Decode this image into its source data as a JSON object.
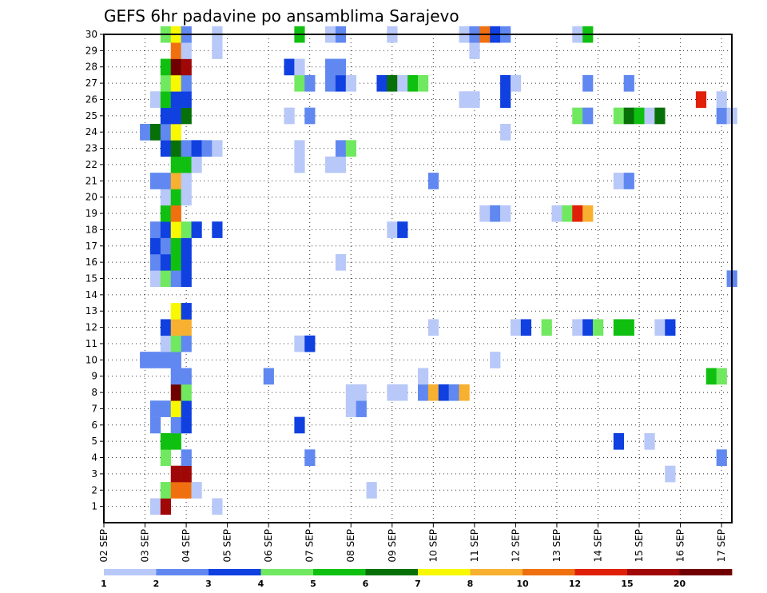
{
  "chart_data": {
    "type": "heatmap",
    "title": "GEFS 6hr padavine po ansamblima Sarajevo",
    "x_ticks": [
      "02 SEP",
      "03 SEP",
      "04 SEP",
      "05 SEP",
      "06 SEP",
      "07 SEP",
      "08 SEP",
      "09 SEP",
      "10 SEP",
      "11 SEP",
      "12 SEP",
      "13 SEP",
      "14 SEP",
      "15 SEP",
      "16 SEP",
      "17 SEP"
    ],
    "x_start": "02 SEP 00Z",
    "x_step_hours": 6,
    "x_range": [
      0,
      61
    ],
    "y_range": [
      0,
      30
    ],
    "y_ticks": [
      1,
      2,
      3,
      4,
      5,
      6,
      7,
      8,
      9,
      10,
      11,
      12,
      13,
      14,
      15,
      16,
      17,
      18,
      19,
      20,
      21,
      22,
      23,
      24,
      25,
      26,
      27,
      28,
      29,
      30
    ],
    "grid": true,
    "legend": {
      "placement": "bottom",
      "levels": [
        1,
        2,
        3,
        4,
        5,
        6,
        7,
        8,
        10,
        12,
        15,
        20
      ],
      "colors": [
        "#b8c8f8",
        "#6088f0",
        "#1040e0",
        "#70e860",
        "#10c010",
        "#087008",
        "#f8f800",
        "#f8b030",
        "#f07010",
        "#e02008",
        "#a00808",
        "#700000"
      ]
    },
    "cells": [
      [
        1,
        5,
        1
      ],
      [
        1,
        6,
        11
      ],
      [
        1,
        11,
        1
      ],
      [
        2,
        6,
        4
      ],
      [
        2,
        7,
        9
      ],
      [
        2,
        8,
        9
      ],
      [
        2,
        9,
        1
      ],
      [
        2,
        26,
        1
      ],
      [
        3,
        7,
        11
      ],
      [
        3,
        8,
        11
      ],
      [
        3,
        55,
        1
      ],
      [
        4,
        6,
        4
      ],
      [
        4,
        8,
        2
      ],
      [
        4,
        20,
        2
      ],
      [
        4,
        60,
        2
      ],
      [
        5,
        6,
        5
      ],
      [
        5,
        7,
        5
      ],
      [
        5,
        50,
        3
      ],
      [
        5,
        53,
        1
      ],
      [
        6,
        5,
        2
      ],
      [
        6,
        7,
        2
      ],
      [
        6,
        8,
        3
      ],
      [
        6,
        19,
        3
      ],
      [
        7,
        5,
        2
      ],
      [
        7,
        6,
        2
      ],
      [
        7,
        7,
        7
      ],
      [
        7,
        8,
        3
      ],
      [
        7,
        24,
        1
      ],
      [
        7,
        25,
        2
      ],
      [
        8,
        7,
        12
      ],
      [
        8,
        8,
        4
      ],
      [
        8,
        24,
        1
      ],
      [
        8,
        25,
        1
      ],
      [
        8,
        28,
        1
      ],
      [
        8,
        29,
        1
      ],
      [
        8,
        31,
        2
      ],
      [
        8,
        32,
        8
      ],
      [
        8,
        33,
        3
      ],
      [
        8,
        34,
        2
      ],
      [
        8,
        35,
        8
      ],
      [
        9,
        7,
        2
      ],
      [
        9,
        8,
        2
      ],
      [
        9,
        16,
        2
      ],
      [
        9,
        31,
        1
      ],
      [
        9,
        59,
        5
      ],
      [
        9,
        60,
        4
      ],
      [
        10,
        4,
        2
      ],
      [
        10,
        5,
        2
      ],
      [
        10,
        6,
        2
      ],
      [
        10,
        7,
        2
      ],
      [
        10,
        38,
        1
      ],
      [
        11,
        6,
        1
      ],
      [
        11,
        7,
        4
      ],
      [
        11,
        8,
        2
      ],
      [
        11,
        19,
        1
      ],
      [
        11,
        20,
        3
      ],
      [
        12,
        6,
        3
      ],
      [
        12,
        7,
        8
      ],
      [
        12,
        8,
        8
      ],
      [
        12,
        32,
        1
      ],
      [
        12,
        40,
        1
      ],
      [
        12,
        41,
        3
      ],
      [
        12,
        43,
        4
      ],
      [
        12,
        46,
        1
      ],
      [
        12,
        47,
        3
      ],
      [
        12,
        48,
        4
      ],
      [
        12,
        50,
        5
      ],
      [
        12,
        51,
        5
      ],
      [
        12,
        54,
        1
      ],
      [
        12,
        55,
        3
      ],
      [
        13,
        7,
        7
      ],
      [
        13,
        8,
        3
      ],
      [
        15,
        5,
        1
      ],
      [
        15,
        6,
        4
      ],
      [
        15,
        7,
        2
      ],
      [
        15,
        8,
        3
      ],
      [
        15,
        61,
        2
      ],
      [
        16,
        5,
        2
      ],
      [
        16,
        6,
        3
      ],
      [
        16,
        7,
        5
      ],
      [
        16,
        8,
        3
      ],
      [
        16,
        23,
        1
      ],
      [
        17,
        5,
        3
      ],
      [
        17,
        6,
        2
      ],
      [
        17,
        7,
        5
      ],
      [
        17,
        8,
        3
      ],
      [
        18,
        5,
        2
      ],
      [
        18,
        6,
        3
      ],
      [
        18,
        7,
        7
      ],
      [
        18,
        8,
        4
      ],
      [
        18,
        9,
        3
      ],
      [
        18,
        11,
        3
      ],
      [
        18,
        28,
        1
      ],
      [
        18,
        29,
        3
      ],
      [
        19,
        6,
        5
      ],
      [
        19,
        7,
        9
      ],
      [
        19,
        37,
        1
      ],
      [
        19,
        38,
        2
      ],
      [
        19,
        39,
        1
      ],
      [
        19,
        44,
        1
      ],
      [
        19,
        45,
        4
      ],
      [
        19,
        46,
        10
      ],
      [
        19,
        47,
        8
      ],
      [
        20,
        6,
        1
      ],
      [
        20,
        7,
        5
      ],
      [
        20,
        8,
        1
      ],
      [
        21,
        5,
        2
      ],
      [
        21,
        6,
        2
      ],
      [
        21,
        7,
        8
      ],
      [
        21,
        8,
        1
      ],
      [
        21,
        32,
        2
      ],
      [
        21,
        50,
        1
      ],
      [
        21,
        51,
        2
      ],
      [
        22,
        7,
        5
      ],
      [
        22,
        8,
        5
      ],
      [
        22,
        9,
        1
      ],
      [
        22,
        19,
        1
      ],
      [
        22,
        22,
        1
      ],
      [
        22,
        23,
        1
      ],
      [
        23,
        6,
        3
      ],
      [
        23,
        7,
        6
      ],
      [
        23,
        8,
        2
      ],
      [
        23,
        9,
        3
      ],
      [
        23,
        10,
        2
      ],
      [
        23,
        11,
        1
      ],
      [
        23,
        19,
        1
      ],
      [
        23,
        23,
        2
      ],
      [
        23,
        24,
        4
      ],
      [
        24,
        4,
        2
      ],
      [
        24,
        5,
        6
      ],
      [
        24,
        6,
        2
      ],
      [
        24,
        7,
        7
      ],
      [
        24,
        39,
        1
      ],
      [
        25,
        6,
        3
      ],
      [
        25,
        7,
        3
      ],
      [
        25,
        8,
        6
      ],
      [
        25,
        18,
        1
      ],
      [
        25,
        20,
        2
      ],
      [
        25,
        46,
        4
      ],
      [
        25,
        47,
        2
      ],
      [
        25,
        50,
        4
      ],
      [
        25,
        51,
        6
      ],
      [
        25,
        52,
        5
      ],
      [
        25,
        53,
        1
      ],
      [
        25,
        54,
        6
      ],
      [
        25,
        60,
        2
      ],
      [
        25,
        61,
        1
      ],
      [
        26,
        5,
        1
      ],
      [
        26,
        6,
        5
      ],
      [
        26,
        7,
        3
      ],
      [
        26,
        8,
        3
      ],
      [
        26,
        35,
        1
      ],
      [
        26,
        36,
        1
      ],
      [
        26,
        39,
        3
      ],
      [
        26,
        58,
        10
      ],
      [
        26,
        60,
        1
      ],
      [
        27,
        6,
        4
      ],
      [
        27,
        7,
        7
      ],
      [
        27,
        8,
        2
      ],
      [
        27,
        19,
        4
      ],
      [
        27,
        20,
        2
      ],
      [
        27,
        22,
        2
      ],
      [
        27,
        23,
        3
      ],
      [
        27,
        24,
        1
      ],
      [
        27,
        27,
        3
      ],
      [
        27,
        28,
        6
      ],
      [
        27,
        29,
        1
      ],
      [
        27,
        30,
        5
      ],
      [
        27,
        31,
        4
      ],
      [
        27,
        39,
        3
      ],
      [
        27,
        40,
        1
      ],
      [
        27,
        47,
        2
      ],
      [
        27,
        51,
        2
      ],
      [
        28,
        6,
        5
      ],
      [
        28,
        7,
        12
      ],
      [
        28,
        8,
        11
      ],
      [
        28,
        18,
        3
      ],
      [
        28,
        19,
        1
      ],
      [
        28,
        22,
        2
      ],
      [
        28,
        23,
        2
      ],
      [
        29,
        7,
        9
      ],
      [
        29,
        8,
        1
      ],
      [
        29,
        11,
        1
      ],
      [
        29,
        36,
        1
      ],
      [
        30,
        6,
        4
      ],
      [
        30,
        7,
        7
      ],
      [
        30,
        8,
        2
      ],
      [
        30,
        11,
        1
      ],
      [
        30,
        19,
        5
      ],
      [
        30,
        22,
        1
      ],
      [
        30,
        23,
        2
      ],
      [
        30,
        28,
        1
      ],
      [
        30,
        35,
        1
      ],
      [
        30,
        36,
        2
      ],
      [
        30,
        37,
        9
      ],
      [
        30,
        38,
        3
      ],
      [
        30,
        39,
        2
      ],
      [
        30,
        46,
        1
      ],
      [
        30,
        47,
        5
      ]
    ]
  }
}
